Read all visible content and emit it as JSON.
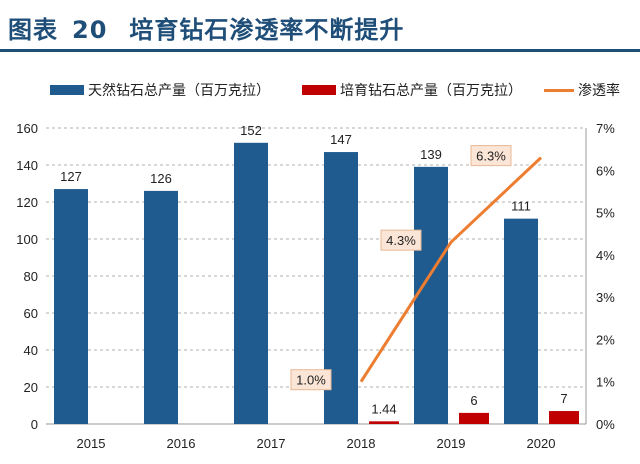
{
  "figure": {
    "label": "图表",
    "number": "20",
    "caption": "培育钻石渗透率不断提升"
  },
  "colors": {
    "natural": "#1f5b8e",
    "lab": "#c00000",
    "rate": "#ed7d31",
    "title": "#1f4e79",
    "grid": "#b0b0b0",
    "rateLabelBg": "#fbe5d6"
  },
  "chart_data": {
    "type": "bar",
    "categories": [
      "2015",
      "2016",
      "2017",
      "2018",
      "2019",
      "2020"
    ],
    "series": [
      {
        "name": "天然钻石总产量（百万克拉）",
        "kind": "bar",
        "axis": "left",
        "values": [
          127,
          126,
          152,
          147,
          139,
          111
        ],
        "labels": [
          "127",
          "126",
          "152",
          "147",
          "139",
          "111"
        ]
      },
      {
        "name": "培育钻石总产量（百万克拉）",
        "kind": "bar",
        "axis": "left",
        "values": [
          null,
          null,
          null,
          1.44,
          6,
          7
        ],
        "labels": [
          "",
          "",
          "",
          "1.44",
          "6",
          "7"
        ]
      },
      {
        "name": "渗透率",
        "kind": "line",
        "axis": "right",
        "values": [
          null,
          null,
          null,
          0.01,
          0.043,
          0.063
        ],
        "labels": [
          "",
          "",
          "",
          "1.0%",
          "4.3%",
          "6.3%"
        ]
      }
    ],
    "ylim_left": [
      0,
      160
    ],
    "yticks_left": [
      "0",
      "20",
      "40",
      "60",
      "80",
      "100",
      "120",
      "140",
      "160"
    ],
    "ylim_right": [
      0,
      0.07
    ],
    "yticks_right": [
      "0%",
      "1%",
      "2%",
      "3%",
      "4%",
      "5%",
      "6%",
      "7%"
    ],
    "legend_position": "top",
    "grid": "horizontal-dashed"
  }
}
